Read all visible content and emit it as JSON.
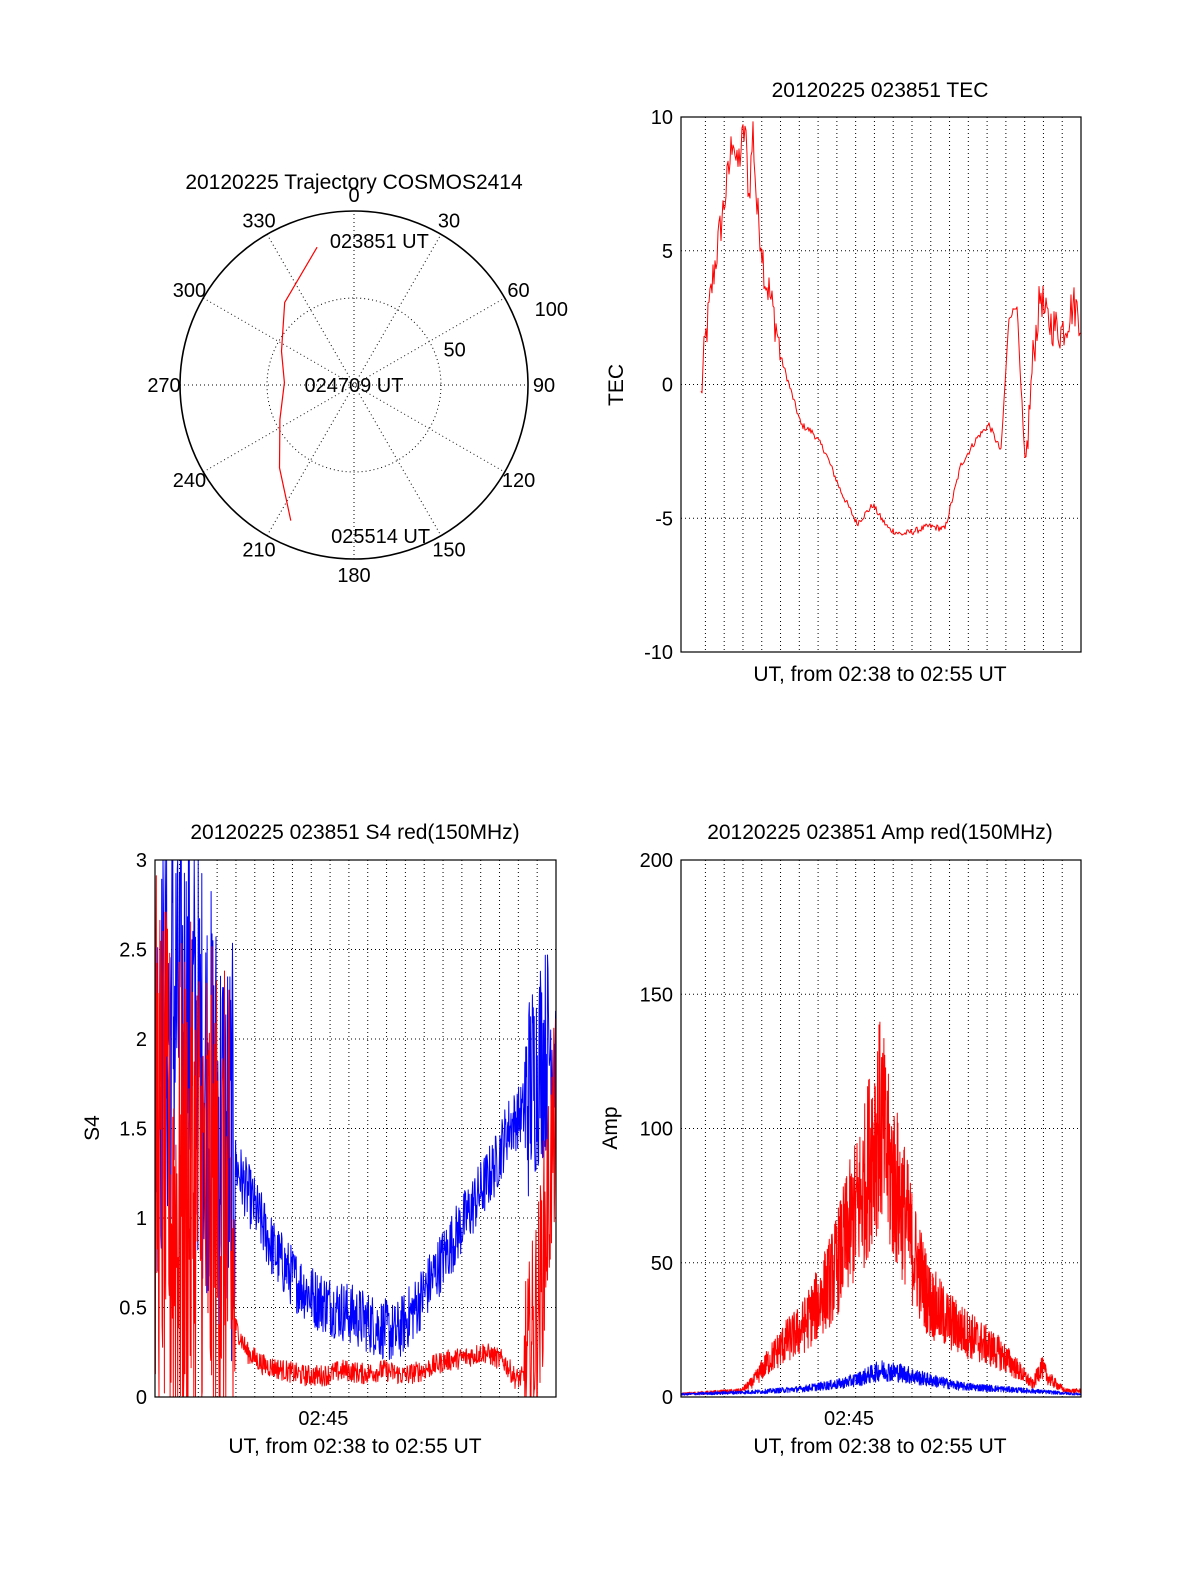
{
  "chart_data": [
    {
      "type": "polar",
      "title": "20120225 Trajectory COSMOS2414",
      "angle_labels": [
        "0",
        "30",
        "60",
        "90",
        "120",
        "150",
        "180",
        "210",
        "240",
        "270",
        "300",
        "330"
      ],
      "radius_labels": [
        "50",
        "100"
      ],
      "rlim": [
        0,
        100
      ],
      "grid": true,
      "series": [
        {
          "color": "#ff0000",
          "points": [
            {
              "az": 345,
              "r": 82
            },
            {
              "az": 320,
              "r": 62
            },
            {
              "az": 295,
              "r": 46
            },
            {
              "az": 272,
              "r": 40
            },
            {
              "az": 245,
              "r": 47
            },
            {
              "az": 222,
              "r": 64
            },
            {
              "az": 205,
              "r": 86
            }
          ]
        }
      ],
      "annotations": [
        {
          "text": "023851 UT",
          "az": 10,
          "r": 84
        },
        {
          "text": "024709 UT",
          "az": 90,
          "r": 0
        },
        {
          "text": "025514 UT",
          "az": 170,
          "r": 88
        }
      ]
    },
    {
      "type": "line",
      "title": "20120225 023851 TEC",
      "xlabel": "UT, from 02:38 to 02:55 UT",
      "ylabel": "TEC",
      "xlim": [
        0,
        1
      ],
      "ylim": [
        -10,
        10
      ],
      "yticks": [
        "-10",
        "-5",
        "0",
        "5",
        "10"
      ],
      "grid": true,
      "series": [
        {
          "color": "#ff0000",
          "x": [
            0.05,
            0.06,
            0.08,
            0.1,
            0.12,
            0.13,
            0.14,
            0.16,
            0.17,
            0.18,
            0.19,
            0.2,
            0.21,
            0.22,
            0.24,
            0.25,
            0.28,
            0.3,
            0.33,
            0.36,
            0.4,
            0.44,
            0.48,
            0.5,
            0.52,
            0.55,
            0.58,
            0.62,
            0.66,
            0.7,
            0.74,
            0.77,
            0.8,
            0.82,
            0.84,
            0.86,
            0.88,
            0.9,
            0.91,
            0.93,
            0.95,
            0.96,
            0.97,
            0.98,
            0.99,
            1.0
          ],
          "y": [
            -0.5,
            1.5,
            4.0,
            6.0,
            8.0,
            9.5,
            8.0,
            9.6,
            7.0,
            9.5,
            6.5,
            5.5,
            4.0,
            3.5,
            2.0,
            1.0,
            -0.5,
            -1.5,
            -1.8,
            -2.5,
            -4.0,
            -5.2,
            -4.5,
            -5.0,
            -5.4,
            -5.6,
            -5.5,
            -5.3,
            -5.4,
            -3.0,
            -2.0,
            -1.5,
            -2.5,
            2.5,
            3.0,
            -3.5,
            1.0,
            3.5,
            2.5,
            2.2,
            2.0,
            2.2,
            2.6,
            3.0,
            2.8,
            2.4
          ]
        }
      ]
    },
    {
      "type": "line",
      "title": "20120225 023851 S4 red(150MHz)",
      "xlabel": "UT, from 02:38 to 02:55 UT",
      "ylabel": "S4",
      "xlim": [
        0,
        1
      ],
      "ylim": [
        0,
        3
      ],
      "xticks": [
        {
          "pos": 0.42,
          "label": "02:45"
        }
      ],
      "yticks": [
        "0",
        "0.5",
        "1",
        "1.5",
        "2",
        "2.5",
        "3"
      ],
      "grid": true,
      "series": [
        {
          "color": "#0000ff",
          "x": [
            0.0,
            0.05,
            0.1,
            0.15,
            0.2,
            0.25,
            0.3,
            0.35,
            0.4,
            0.45,
            0.5,
            0.55,
            0.6,
            0.65,
            0.7,
            0.75,
            0.8,
            0.85,
            0.88,
            0.92,
            0.96,
            1.0
          ],
          "y": [
            1.8,
            2.2,
            2.0,
            1.6,
            1.3,
            1.05,
            0.8,
            0.65,
            0.55,
            0.5,
            0.45,
            0.4,
            0.35,
            0.5,
            0.7,
            0.9,
            1.1,
            1.3,
            1.5,
            1.6,
            1.9,
            2.0
          ]
        },
        {
          "color": "#ff0000",
          "x": [
            0.0,
            0.05,
            0.1,
            0.15,
            0.18,
            0.2,
            0.23,
            0.27,
            0.32,
            0.37,
            0.42,
            0.47,
            0.52,
            0.57,
            0.62,
            0.67,
            0.72,
            0.77,
            0.82,
            0.87,
            0.9,
            0.93,
            0.96,
            1.0
          ],
          "y": [
            1.5,
            1.0,
            1.2,
            1.0,
            0.9,
            0.4,
            0.25,
            0.18,
            0.15,
            0.12,
            0.12,
            0.15,
            0.13,
            0.15,
            0.12,
            0.15,
            0.2,
            0.22,
            0.25,
            0.2,
            0.1,
            0.12,
            0.6,
            1.6
          ]
        }
      ]
    },
    {
      "type": "line",
      "title": "20120225 023851 Amp red(150MHz)",
      "xlabel": "UT, from 02:38 to 02:55 UT",
      "ylabel": "Amp",
      "xlim": [
        0,
        1
      ],
      "ylim": [
        0,
        200
      ],
      "xticks": [
        {
          "pos": 0.42,
          "label": "02:45"
        }
      ],
      "yticks": [
        "0",
        "50",
        "100",
        "150",
        "200"
      ],
      "grid": true,
      "series": [
        {
          "color": "#ff0000",
          "x": [
            0.0,
            0.15,
            0.18,
            0.22,
            0.26,
            0.3,
            0.34,
            0.38,
            0.42,
            0.44,
            0.46,
            0.48,
            0.5,
            0.52,
            0.54,
            0.56,
            0.58,
            0.6,
            0.62,
            0.66,
            0.7,
            0.75,
            0.8,
            0.85,
            0.88,
            0.9,
            0.92,
            0.94,
            0.96,
            1.0
          ],
          "y": [
            1,
            2,
            5,
            12,
            18,
            22,
            30,
            40,
            55,
            62,
            70,
            85,
            90,
            75,
            68,
            60,
            48,
            40,
            32,
            26,
            22,
            18,
            14,
            8,
            4,
            10,
            6,
            4,
            2,
            2
          ]
        },
        {
          "color": "#0000ff",
          "x": [
            0.0,
            0.2,
            0.3,
            0.4,
            0.45,
            0.5,
            0.55,
            0.6,
            0.7,
            0.8,
            0.9,
            1.0
          ],
          "y": [
            1,
            2,
            3,
            5,
            7,
            10,
            9,
            7,
            4,
            3,
            2,
            1
          ]
        }
      ]
    }
  ]
}
